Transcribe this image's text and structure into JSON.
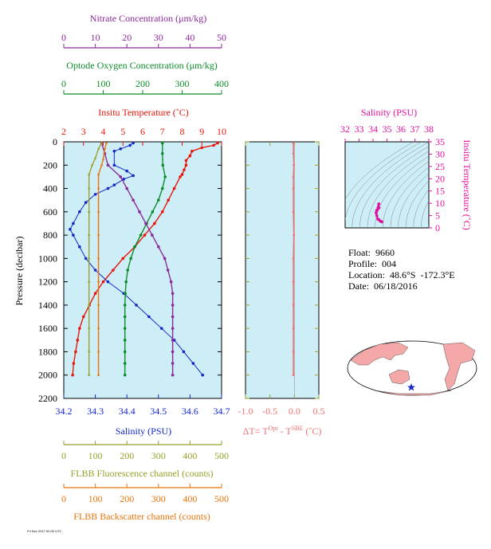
{
  "info": {
    "float": "Float:  9660",
    "profile": "Profile:  004",
    "location": "Location:  48.6°S  -172.3°E",
    "date": "Date:  06/18/2016"
  },
  "stamp": "Fri Nov 2017 00:00 UTC",
  "colors": {
    "temperature": "#e8160c",
    "salinity": "#1428c8",
    "oxygen": "#0d8c2a",
    "nitrate": "#8c2a9c",
    "fluorescence": "#9aa02a",
    "backscatter": "#e8740c",
    "deltaT": "#f07070",
    "ts": "#e0109c",
    "panel_bg": "#cdeef6"
  },
  "chart_data": [
    {
      "type": "line",
      "panel": "main-profile",
      "ylabel": "Pressure (decibar)",
      "y_ticks": [
        "0",
        "200",
        "400",
        "600",
        "800",
        "1000",
        "1200",
        "1400",
        "1600",
        "1800",
        "2000",
        "2200"
      ],
      "ylim": [
        2200,
        0
      ],
      "axes": {
        "temperature": {
          "label": "Insitu Temperature (˚C)",
          "ticks": [
            "2",
            "3",
            "4",
            "5",
            "6",
            "7",
            "8",
            "9",
            "10"
          ],
          "lim": [
            2,
            10
          ],
          "position": "top"
        },
        "oxygen": {
          "label": "Optode Oxygen Concentration (μm/kg)",
          "ticks": [
            "0",
            "100",
            "200",
            "300",
            "400"
          ],
          "lim": [
            0,
            400
          ],
          "position": "top"
        },
        "nitrate": {
          "label": "Nitrate Concentration (μm/kg)",
          "ticks": [
            "0",
            "10",
            "20",
            "30",
            "40",
            "50"
          ],
          "lim": [
            0,
            50
          ],
          "position": "top"
        },
        "salinity": {
          "label": "Salinity (PSU)",
          "ticks": [
            "34.2",
            "34.3",
            "34.4",
            "34.5",
            "34.6",
            "34.7"
          ],
          "lim": [
            34.2,
            34.7
          ],
          "position": "bottom"
        },
        "fluorescence": {
          "label": "FLBB Fluorescence channel (counts)",
          "ticks": [
            "0",
            "100",
            "200",
            "300",
            "400",
            "500"
          ],
          "lim": [
            0,
            500
          ],
          "position": "bottom"
        },
        "backscatter": {
          "label": "FLBB Backscatter channel (counts)",
          "ticks": [
            "0",
            "100",
            "200",
            "300",
            "400",
            "500"
          ],
          "lim": [
            0,
            500
          ],
          "position": "bottom"
        }
      },
      "series": [
        {
          "axis": "temperature",
          "points": [
            [
              9.8,
              10
            ],
            [
              9.6,
              30
            ],
            [
              9.0,
              50
            ],
            [
              8.5,
              80
            ],
            [
              8.4,
              120
            ],
            [
              8.2,
              160
            ],
            [
              8.2,
              200
            ],
            [
              8.1,
              240
            ],
            [
              8.0,
              280
            ],
            [
              7.9,
              300
            ],
            [
              7.6,
              400
            ],
            [
              7.3,
              500
            ],
            [
              7.0,
              600
            ],
            [
              6.6,
              700
            ],
            [
              6.1,
              800
            ],
            [
              5.6,
              900
            ],
            [
              5.0,
              1000
            ],
            [
              4.5,
              1100
            ],
            [
              4.0,
              1200
            ],
            [
              3.6,
              1300
            ],
            [
              3.3,
              1400
            ],
            [
              3.0,
              1500
            ],
            [
              2.8,
              1600
            ],
            [
              2.7,
              1700
            ],
            [
              2.6,
              1800
            ],
            [
              2.5,
              1900
            ],
            [
              2.45,
              2000
            ]
          ]
        },
        {
          "axis": "salinity",
          "points": [
            [
              34.42,
              10
            ],
            [
              34.41,
              30
            ],
            [
              34.38,
              60
            ],
            [
              34.36,
              80
            ],
            [
              34.36,
              200
            ],
            [
              34.4,
              250
            ],
            [
              34.42,
              290
            ],
            [
              34.39,
              320
            ],
            [
              34.36,
              370
            ],
            [
              34.34,
              400
            ],
            [
              34.3,
              450
            ],
            [
              34.27,
              520
            ],
            [
              34.25,
              600
            ],
            [
              34.23,
              700
            ],
            [
              34.22,
              750
            ],
            [
              34.23,
              800
            ],
            [
              34.25,
              900
            ],
            [
              34.27,
              1000
            ],
            [
              34.3,
              1100
            ],
            [
              34.34,
              1200
            ],
            [
              34.39,
              1300
            ],
            [
              34.43,
              1400
            ],
            [
              34.47,
              1500
            ],
            [
              34.51,
              1600
            ],
            [
              34.55,
              1700
            ],
            [
              34.58,
              1800
            ],
            [
              34.61,
              1900
            ],
            [
              34.64,
              2000
            ]
          ]
        },
        {
          "axis": "oxygen",
          "points": [
            [
              250,
              10
            ],
            [
              250,
              100
            ],
            [
              251,
              200
            ],
            [
              257,
              300
            ],
            [
              250,
              400
            ],
            [
              240,
              500
            ],
            [
              225,
              600
            ],
            [
              210,
              700
            ],
            [
              195,
              800
            ],
            [
              180,
              900
            ],
            [
              170,
              1000
            ],
            [
              162,
              1100
            ],
            [
              158,
              1200
            ],
            [
              156,
              1300
            ],
            [
              155,
              1400
            ],
            [
              155,
              1500
            ],
            [
              155,
              1600
            ],
            [
              155,
              1700
            ],
            [
              155,
              1800
            ],
            [
              155,
              1900
            ],
            [
              155,
              2000
            ]
          ]
        },
        {
          "axis": "nitrate",
          "points": [
            [
              12,
              10
            ],
            [
              13,
              100
            ],
            [
              14,
              200
            ],
            [
              18,
              300
            ],
            [
              20,
              400
            ],
            [
              22,
              500
            ],
            [
              24,
              600
            ],
            [
              26,
              700
            ],
            [
              28,
              800
            ],
            [
              30,
              900
            ],
            [
              32,
              1000
            ],
            [
              33,
              1100
            ],
            [
              34,
              1200
            ],
            [
              34.5,
              1300
            ],
            [
              34.5,
              1400
            ],
            [
              34.5,
              1500
            ],
            [
              34.5,
              1600
            ],
            [
              34.5,
              1700
            ],
            [
              34.5,
              1800
            ],
            [
              34.5,
              1900
            ],
            [
              34.5,
              2000
            ]
          ]
        },
        {
          "axis": "fluorescence",
          "points": [
            [
              120,
              10
            ],
            [
              110,
              60
            ],
            [
              100,
              140
            ],
            [
              90,
              200
            ],
            [
              80,
              280
            ],
            [
              80,
              400
            ],
            [
              80,
              600
            ],
            [
              80,
              800
            ],
            [
              80,
              1000
            ],
            [
              80,
              1200
            ],
            [
              80,
              1400
            ],
            [
              80,
              1600
            ],
            [
              80,
              1800
            ],
            [
              80,
              2000
            ]
          ]
        },
        {
          "axis": "backscatter",
          "points": [
            [
              135,
              10
            ],
            [
              130,
              60
            ],
            [
              125,
              150
            ],
            [
              120,
              200
            ],
            [
              110,
              280
            ],
            [
              110,
              400
            ],
            [
              110,
              600
            ],
            [
              110,
              800
            ],
            [
              110,
              1000
            ],
            [
              110,
              1200
            ],
            [
              110,
              1400
            ],
            [
              110,
              1600
            ],
            [
              110,
              1800
            ],
            [
              110,
              2000
            ]
          ]
        }
      ]
    },
    {
      "type": "line",
      "panel": "delta-t",
      "xlabel": "ΔT= TOpt - TSBE (˚C)",
      "x_ticks": [
        "-1.0",
        "-0.5",
        "0.0",
        "0.5"
      ],
      "xlim": [
        -1.0,
        0.5
      ],
      "ylim": [
        2200,
        0
      ],
      "series": [
        {
          "points": [
            [
              -0.02,
              10
            ],
            [
              -0.02,
              100
            ],
            [
              -0.01,
              200
            ],
            [
              -0.02,
              300
            ],
            [
              -0.02,
              400
            ],
            [
              -0.02,
              600
            ],
            [
              -0.01,
              800
            ],
            [
              -0.02,
              1000
            ],
            [
              -0.02,
              1200
            ],
            [
              -0.02,
              1400
            ],
            [
              -0.02,
              1600
            ],
            [
              -0.02,
              1800
            ],
            [
              -0.02,
              2000
            ]
          ]
        }
      ]
    },
    {
      "type": "scatter",
      "panel": "ts-diagram",
      "xlabel": "Salinity (PSU)",
      "ylabel": "Insitu Temperature (˚C)",
      "x_ticks": [
        "32",
        "33",
        "34",
        "35",
        "36",
        "37",
        "38"
      ],
      "y_ticks": [
        "0",
        "5",
        "10",
        "15",
        "20",
        "25",
        "30",
        "35"
      ],
      "xlim": [
        32,
        38
      ],
      "ylim": [
        0,
        35
      ],
      "series": [
        {
          "points": [
            [
              34.64,
              2.45
            ],
            [
              34.58,
              2.6
            ],
            [
              34.51,
              2.8
            ],
            [
              34.43,
              3.3
            ],
            [
              34.34,
              3.6
            ],
            [
              34.27,
              5.0
            ],
            [
              34.22,
              6.1
            ],
            [
              34.25,
              7.0
            ],
            [
              34.3,
              7.3
            ],
            [
              34.36,
              7.9
            ],
            [
              34.42,
              8.1
            ],
            [
              34.36,
              8.2
            ],
            [
              34.38,
              8.5
            ],
            [
              34.41,
              9.6
            ],
            [
              34.42,
              9.8
            ]
          ]
        }
      ]
    }
  ]
}
